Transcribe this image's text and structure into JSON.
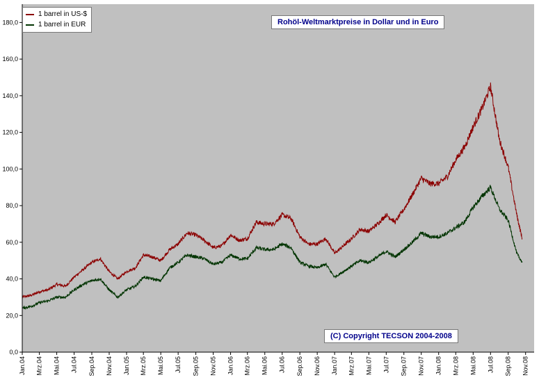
{
  "chart_data": {
    "type": "line",
    "title": "Rohöl-Weltmarktpreise in Dollar und in Euro",
    "copyright": "(C) Copyright TECSON  2004-2008",
    "xlabel": "",
    "ylabel": "",
    "ylim": [
      0,
      190
    ],
    "yticks": [
      "0,0",
      "20,0",
      "40,0",
      "60,0",
      "80,0",
      "100,0",
      "120,0",
      "140,0",
      "160,0",
      "180,0"
    ],
    "ytick_values": [
      0,
      20,
      40,
      60,
      80,
      100,
      120,
      140,
      160,
      180
    ],
    "xticks": [
      "Jan.04",
      "Mrz.04",
      "Mai.04",
      "Jul.04",
      "Sep.04",
      "Nov.04",
      "Jan.05",
      "Mrz.05",
      "Mai.05",
      "Jul.05",
      "Sep.05",
      "Nov.05",
      "Jan.06",
      "Mrz.06",
      "Mai.06",
      "Jul.06",
      "Sep.06",
      "Nov.06",
      "Jan.07",
      "Mrz.07",
      "Mai.07",
      "Jul.07",
      "Sep.07",
      "Nov.07",
      "Jan.08",
      "Mrz.08",
      "Mai.08",
      "Jul.08",
      "Sep.08",
      "Nov.08"
    ],
    "grid": false,
    "legend_position": "top-left",
    "plot_background": "#c0c0c0",
    "series": [
      {
        "name": "1 barrel in US-$",
        "color": "#8b0000",
        "x": [
          "2004-01-01",
          "2004-02-01",
          "2004-03-01",
          "2004-04-01",
          "2004-05-01",
          "2004-06-01",
          "2004-07-01",
          "2004-08-01",
          "2004-09-01",
          "2004-10-01",
          "2004-11-01",
          "2004-12-01",
          "2005-01-01",
          "2005-02-01",
          "2005-03-01",
          "2005-04-01",
          "2005-05-01",
          "2005-06-01",
          "2005-07-01",
          "2005-08-01",
          "2005-09-01",
          "2005-10-01",
          "2005-11-01",
          "2005-12-01",
          "2006-01-01",
          "2006-02-01",
          "2006-03-01",
          "2006-04-01",
          "2006-05-01",
          "2006-06-01",
          "2006-07-01",
          "2006-08-01",
          "2006-09-01",
          "2006-10-01",
          "2006-11-01",
          "2006-12-01",
          "2007-01-01",
          "2007-02-01",
          "2007-03-01",
          "2007-04-01",
          "2007-05-01",
          "2007-06-01",
          "2007-07-01",
          "2007-08-01",
          "2007-09-01",
          "2007-10-01",
          "2007-11-01",
          "2007-12-01",
          "2008-01-01",
          "2008-02-01",
          "2008-03-01",
          "2008-04-01",
          "2008-05-01",
          "2008-06-01",
          "2008-07-01",
          "2008-08-01",
          "2008-09-01",
          "2008-10-01",
          "2008-10-20"
        ],
        "values": [
          30,
          31,
          33,
          34,
          37,
          36,
          41,
          45,
          49,
          51,
          44,
          40,
          44,
          46,
          53,
          52,
          50,
          56,
          59,
          65,
          64,
          61,
          57,
          58,
          64,
          61,
          62,
          71,
          70,
          70,
          75,
          73,
          63,
          59,
          59,
          62,
          54,
          58,
          62,
          67,
          66,
          70,
          75,
          71,
          78,
          86,
          95,
          92,
          92,
          96,
          105,
          112,
          123,
          133,
          145,
          116,
          101,
          75,
          62
        ]
      },
      {
        "name": "1 barrel in EUR",
        "color": "#003300",
        "x": [
          "2004-01-01",
          "2004-02-01",
          "2004-03-01",
          "2004-04-01",
          "2004-05-01",
          "2004-06-01",
          "2004-07-01",
          "2004-08-01",
          "2004-09-01",
          "2004-10-01",
          "2004-11-01",
          "2004-12-01",
          "2005-01-01",
          "2005-02-01",
          "2005-03-01",
          "2005-04-01",
          "2005-05-01",
          "2005-06-01",
          "2005-07-01",
          "2005-08-01",
          "2005-09-01",
          "2005-10-01",
          "2005-11-01",
          "2005-12-01",
          "2006-01-01",
          "2006-02-01",
          "2006-03-01",
          "2006-04-01",
          "2006-05-01",
          "2006-06-01",
          "2006-07-01",
          "2006-08-01",
          "2006-09-01",
          "2006-10-01",
          "2006-11-01",
          "2006-12-01",
          "2007-01-01",
          "2007-02-01",
          "2007-03-01",
          "2007-04-01",
          "2007-05-01",
          "2007-06-01",
          "2007-07-01",
          "2007-08-01",
          "2007-09-01",
          "2007-10-01",
          "2007-11-01",
          "2007-12-01",
          "2008-01-01",
          "2008-02-01",
          "2008-03-01",
          "2008-04-01",
          "2008-05-01",
          "2008-06-01",
          "2008-07-01",
          "2008-08-01",
          "2008-09-01",
          "2008-10-01",
          "2008-10-20"
        ],
        "values": [
          24,
          25,
          27,
          28,
          30,
          30,
          34,
          37,
          39,
          40,
          34,
          30,
          34,
          36,
          41,
          40,
          39,
          46,
          49,
          53,
          52,
          51,
          48,
          49,
          53,
          51,
          51,
          57,
          56,
          56,
          59,
          57,
          49,
          47,
          46,
          48,
          41,
          44,
          47,
          50,
          49,
          52,
          55,
          52,
          56,
          60,
          65,
          63,
          63,
          65,
          68,
          71,
          79,
          85,
          90,
          78,
          72,
          54,
          49
        ]
      }
    ]
  }
}
